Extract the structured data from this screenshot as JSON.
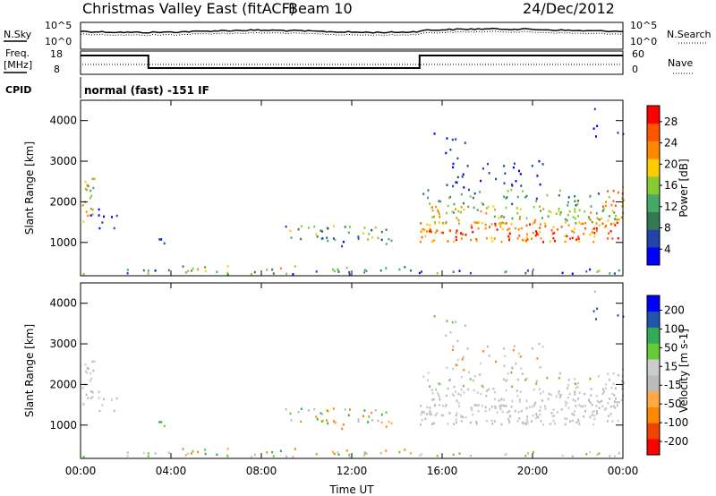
{
  "header": {
    "title": "Christmas Valley East (fitACF)",
    "beam": "Beam 10",
    "date": "24/Dec/2012"
  },
  "status_panel": {
    "left_label_top": "N.Sky",
    "left_label_freq_1": "Freq.",
    "left_label_freq_2": "[MHz]",
    "left_label_cpid": "CPID",
    "right_label_search": "N.Search",
    "right_label_nave": "Nave",
    "sky_ticks_left": [
      "10^5",
      "10^0"
    ],
    "sky_ticks_right": [
      "10^5",
      "10^0"
    ],
    "freq_ticks": [
      "18",
      "8"
    ],
    "nave_ticks": [
      "60",
      "0"
    ],
    "cpid_text": "normal (fast) -151 IF",
    "freq_levels": [
      {
        "from_hour": 0,
        "to_hour": 3,
        "value": 17
      },
      {
        "from_hour": 3,
        "to_hour": 15,
        "value": 10
      },
      {
        "from_hour": 15,
        "to_hour": 24,
        "value": 17
      }
    ]
  },
  "colors": {
    "power_scale": [
      "#0000ff",
      "#2244aa",
      "#337755",
      "#44aa66",
      "#88cc33",
      "#ffcc00",
      "#ff8800",
      "#ff5500",
      "#ff0000"
    ],
    "velocity_scale": [
      "#ff0000",
      "#ee4400",
      "#ff8800",
      "#ffaa44",
      "#bbbbbb",
      "#cccccc",
      "#66cc33",
      "#33aa55",
      "#2255aa",
      "#0000ff"
    ]
  },
  "chart_data": [
    {
      "type": "heatmap",
      "name": "power-panel",
      "ylabel": "Slant Range [km]",
      "xlim": [
        0,
        24
      ],
      "ylim": [
        180,
        4500
      ],
      "yticks": [
        "1000",
        "2000",
        "3000",
        "4000"
      ],
      "colorbar": {
        "label": "Power [dB]",
        "ticks": [
          "4",
          "8",
          "12",
          "16",
          "20",
          "24",
          "28"
        ]
      }
    },
    {
      "type": "heatmap",
      "name": "velocity-panel",
      "ylabel": "Slant Range [km]",
      "xlabel": "Time UT",
      "xlim": [
        0,
        24
      ],
      "ylim": [
        180,
        4500
      ],
      "xticks": [
        "00:00",
        "04:00",
        "08:00",
        "12:00",
        "16:00",
        "20:00",
        "00:00"
      ],
      "yticks": [
        "1000",
        "2000",
        "3000",
        "4000"
      ],
      "colorbar": {
        "label": "Velocity [m s-1]",
        "ticks": [
          "200",
          "100",
          "50",
          "15",
          "-15",
          "-50",
          "-100",
          "-200"
        ]
      }
    }
  ]
}
